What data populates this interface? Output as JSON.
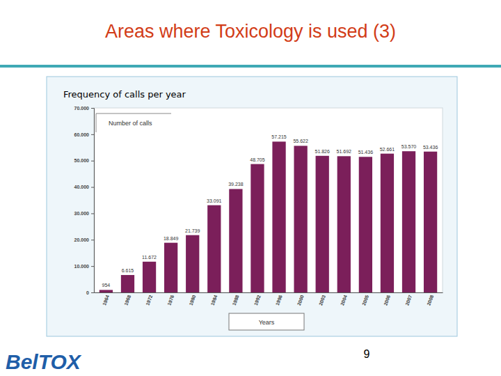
{
  "slide": {
    "title": "Areas where Toxicology is used (3)",
    "page_number": 9,
    "logo": "BelTOX"
  },
  "chart_data": {
    "type": "bar",
    "title": "Frequency of calls per year",
    "x_label": "Years",
    "categories": [
      "1964",
      "1968",
      "1972",
      "1976",
      "1980",
      "1984",
      "1988",
      "1992",
      "1996",
      "2000",
      "2003",
      "2004",
      "2005",
      "2006",
      "2007",
      "2008"
    ],
    "series": [
      {
        "name": "Number of calls",
        "color": "#7b1f5a",
        "values": [
          954,
          6615,
          11672,
          18849,
          21739,
          33091,
          39238,
          48705,
          57215,
          55622,
          51826,
          51692,
          51436,
          52661,
          53570,
          53436
        ],
        "value_labels": [
          "954",
          "6.615",
          "11.672",
          "18.849",
          "21.739",
          "33.091",
          "39.238",
          "48.705",
          "57.215",
          "55.622",
          "51.826",
          "51.692",
          "51.436",
          "52.661",
          "53.570",
          "53.436"
        ]
      }
    ],
    "ylim": [
      0,
      70000
    ],
    "yticks": [
      {
        "value": 0,
        "label": "0"
      },
      {
        "value": 10000,
        "label": "10.000"
      },
      {
        "value": 20000,
        "label": "20.000"
      },
      {
        "value": 30000,
        "label": "30.000"
      },
      {
        "value": 40000,
        "label": "40.000"
      },
      {
        "value": 50000,
        "label": "50.000"
      },
      {
        "value": 60000,
        "label": "60.000"
      },
      {
        "value": 70000,
        "label": "70.000"
      }
    ],
    "grid": false,
    "legend": "top-left",
    "data_labels": true
  }
}
